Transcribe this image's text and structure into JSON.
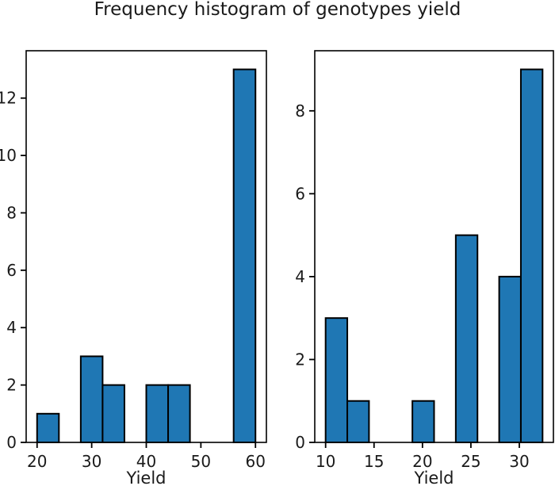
{
  "title": "Frequency histogram of genotypes yield",
  "colors": {
    "bar_fill": "#1f77b4",
    "bar_edge": "#000000",
    "axis": "#000000",
    "text": "#1a1a1a",
    "background": "#ffffff"
  },
  "chart_data": [
    {
      "type": "bar",
      "subtype": "histogram",
      "name": "left-histogram",
      "xlabel": "Yield",
      "ylabel": "",
      "xlim": [
        18,
        62
      ],
      "ylim": [
        0,
        13.65
      ],
      "xticks": [
        20,
        30,
        40,
        50,
        60
      ],
      "yticks": [
        0,
        2,
        4,
        6,
        8,
        10,
        12
      ],
      "bin_edges": [
        20,
        24,
        28,
        32,
        36,
        40,
        44,
        48,
        52,
        56,
        60
      ],
      "counts": [
        1,
        0,
        3,
        2,
        0,
        2,
        2,
        0,
        0,
        13
      ],
      "grid": false,
      "legend": null
    },
    {
      "type": "bar",
      "subtype": "histogram",
      "name": "right-histogram",
      "xlabel": "Yield",
      "ylabel": "",
      "xlim": [
        8.88,
        33.52
      ],
      "ylim": [
        0,
        9.45
      ],
      "xticks": [
        10,
        15,
        20,
        25,
        30
      ],
      "yticks": [
        0,
        2,
        4,
        6,
        8
      ],
      "bin_edges": [
        10,
        12.24,
        14.48,
        16.72,
        18.96,
        21.2,
        23.44,
        25.68,
        27.92,
        30.16,
        32.4
      ],
      "counts": [
        3,
        1,
        0,
        0,
        1,
        0,
        5,
        0,
        4,
        9
      ],
      "grid": false,
      "legend": null
    }
  ]
}
